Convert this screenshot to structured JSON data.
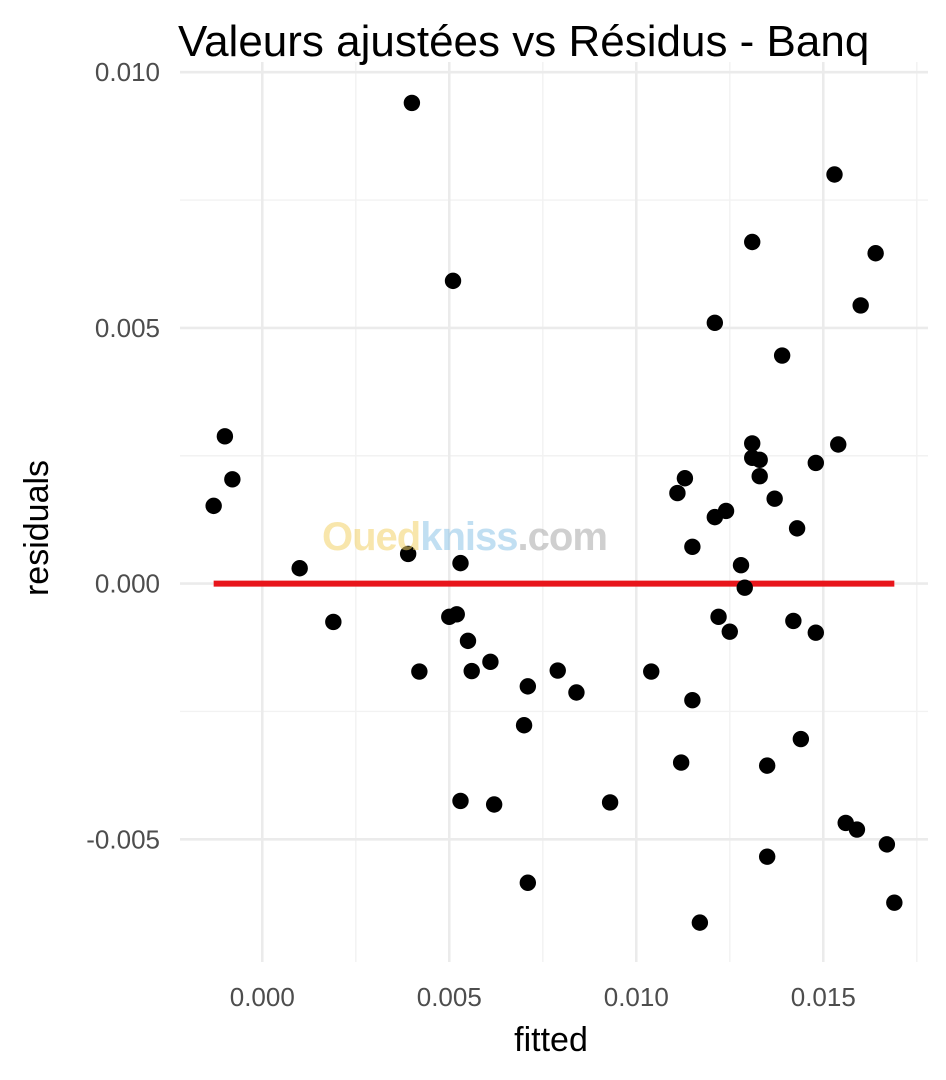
{
  "chart_data": {
    "type": "scatter",
    "title": "Valeurs ajustées vs Résidus - Banq",
    "xlabel": "fitted",
    "ylabel": "residuals",
    "xlim": [
      -0.0022,
      0.0178
    ],
    "ylim": [
      -0.0074,
      0.0102
    ],
    "x_ticks": [
      0.0,
      0.005,
      0.01,
      0.015
    ],
    "x_tick_labels": [
      "0.000",
      "0.005",
      "0.010",
      "0.015"
    ],
    "y_ticks": [
      -0.005,
      0.0,
      0.005,
      0.01
    ],
    "y_tick_labels": [
      "-0.005",
      "0.000",
      "0.005",
      "0.010"
    ],
    "grid": true,
    "reference_line": {
      "x": [
        -0.0013,
        0.0169
      ],
      "y": [
        0.0,
        0.0
      ],
      "color": "#e8151b"
    },
    "point_color": "#000000",
    "points": [
      {
        "x": -0.0013,
        "y": 0.00152
      },
      {
        "x": -0.001,
        "y": 0.00288
      },
      {
        "x": -0.0008,
        "y": 0.00204
      },
      {
        "x": 0.001,
        "y": 0.0003
      },
      {
        "x": 0.0019,
        "y": -0.00075
      },
      {
        "x": 0.0039,
        "y": 0.00058
      },
      {
        "x": 0.004,
        "y": 0.0094
      },
      {
        "x": 0.0042,
        "y": -0.00172
      },
      {
        "x": 0.005,
        "y": -0.00065
      },
      {
        "x": 0.0051,
        "y": 0.00592
      },
      {
        "x": 0.0052,
        "y": -0.0006
      },
      {
        "x": 0.0053,
        "y": 0.0004
      },
      {
        "x": 0.0053,
        "y": -0.00425
      },
      {
        "x": 0.0055,
        "y": -0.00112
      },
      {
        "x": 0.0056,
        "y": -0.00171
      },
      {
        "x": 0.0061,
        "y": -0.00153
      },
      {
        "x": 0.0062,
        "y": -0.00432
      },
      {
        "x": 0.007,
        "y": -0.00277
      },
      {
        "x": 0.0071,
        "y": -0.00201
      },
      {
        "x": 0.0071,
        "y": -0.00585
      },
      {
        "x": 0.0079,
        "y": -0.0017
      },
      {
        "x": 0.0084,
        "y": -0.00213
      },
      {
        "x": 0.0093,
        "y": -0.00428
      },
      {
        "x": 0.0104,
        "y": -0.00172
      },
      {
        "x": 0.0111,
        "y": 0.00177
      },
      {
        "x": 0.0112,
        "y": -0.0035
      },
      {
        "x": 0.0113,
        "y": 0.00206
      },
      {
        "x": 0.0115,
        "y": 0.00072
      },
      {
        "x": 0.0115,
        "y": -0.00228
      },
      {
        "x": 0.0117,
        "y": -0.00663
      },
      {
        "x": 0.0121,
        "y": 0.0051
      },
      {
        "x": 0.0121,
        "y": 0.0013
      },
      {
        "x": 0.0122,
        "y": -0.00065
      },
      {
        "x": 0.0124,
        "y": 0.00142
      },
      {
        "x": 0.0125,
        "y": -0.00094
      },
      {
        "x": 0.0128,
        "y": 0.00036
      },
      {
        "x": 0.0129,
        "y": -8e-05
      },
      {
        "x": 0.0131,
        "y": 0.00668
      },
      {
        "x": 0.0131,
        "y": 0.00274
      },
      {
        "x": 0.0131,
        "y": 0.00246
      },
      {
        "x": 0.0133,
        "y": 0.00242
      },
      {
        "x": 0.0133,
        "y": 0.0021
      },
      {
        "x": 0.0135,
        "y": -0.00356
      },
      {
        "x": 0.0135,
        "y": -0.00534
      },
      {
        "x": 0.0137,
        "y": 0.00166
      },
      {
        "x": 0.0139,
        "y": 0.00446
      },
      {
        "x": 0.0142,
        "y": -0.00073
      },
      {
        "x": 0.0143,
        "y": 0.00108
      },
      {
        "x": 0.0144,
        "y": -0.00304
      },
      {
        "x": 0.0148,
        "y": 0.00236
      },
      {
        "x": 0.0148,
        "y": -0.00096
      },
      {
        "x": 0.0153,
        "y": 0.008
      },
      {
        "x": 0.0154,
        "y": 0.00272
      },
      {
        "x": 0.0156,
        "y": -0.00468
      },
      {
        "x": 0.0159,
        "y": -0.00481
      },
      {
        "x": 0.016,
        "y": 0.00544
      },
      {
        "x": 0.0164,
        "y": 0.00646
      },
      {
        "x": 0.0167,
        "y": -0.0051
      },
      {
        "x": 0.0169,
        "y": -0.00624
      }
    ]
  },
  "watermark": {
    "part1": "Oued",
    "part2": "kniss",
    "part3": ".com"
  }
}
